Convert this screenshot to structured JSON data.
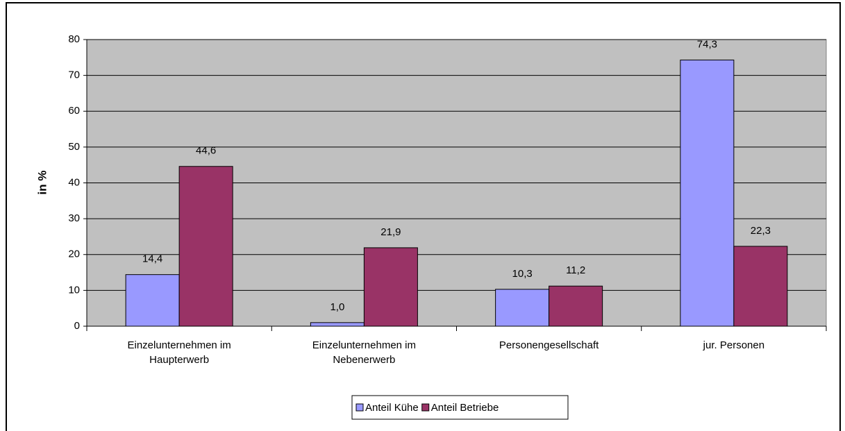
{
  "chart_data": {
    "type": "bar",
    "y_label": "in %",
    "categories": [
      [
        "Einzelunternehmen im",
        "Haupterwerb"
      ],
      [
        "Einzelunternehmen im",
        "Nebenerwerb"
      ],
      [
        "Personengesellschaft"
      ],
      [
        "jur. Personen"
      ]
    ],
    "series": [
      {
        "name": "Anteil Kühe",
        "color": "#9999ff",
        "values": [
          14.4,
          1.0,
          10.3,
          74.3
        ],
        "value_labels": [
          "14,4",
          "1,0",
          "10,3",
          "74,3"
        ]
      },
      {
        "name": "Anteil Betriebe",
        "color": "#993366",
        "values": [
          44.6,
          21.9,
          11.2,
          22.3
        ],
        "value_labels": [
          "44,6",
          "21,9",
          "11,2",
          "22,3"
        ]
      }
    ],
    "ylim": [
      0,
      80
    ],
    "yticks": [
      0,
      10,
      20,
      30,
      40,
      50,
      60,
      70,
      80
    ],
    "grid": true,
    "plot_background": "#c0c0c0",
    "legend": "bottom"
  }
}
